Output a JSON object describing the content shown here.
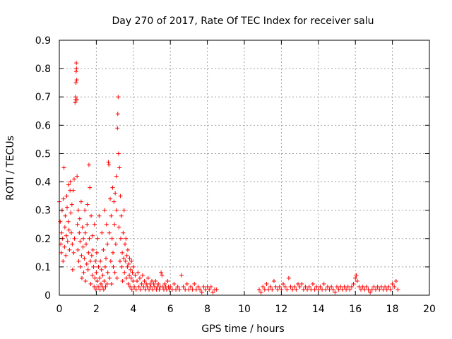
{
  "chart_data": {
    "type": "scatter",
    "title": "Day 270 of 2017, Rate Of TEC Index for receiver salu",
    "xlabel": "GPS time / hours",
    "ylabel": "ROTI / TECUs",
    "xlim": [
      0,
      20
    ],
    "ylim": [
      0,
      0.9
    ],
    "xticks": [
      "0",
      "2",
      "4",
      "6",
      "8",
      "10",
      "12",
      "14",
      "16",
      "18",
      "20"
    ],
    "yticks": [
      "0",
      "0.1",
      "0.2",
      "0.3",
      "0.4",
      "0.5",
      "0.6",
      "0.7",
      "0.8",
      "0.9"
    ],
    "grid": true,
    "marker": "plus",
    "color": "#ff0000",
    "series": [
      {
        "name": "ROTI",
        "points": [
          [
            0.0,
            0.33
          ],
          [
            0.05,
            0.26
          ],
          [
            0.08,
            0.18
          ],
          [
            0.1,
            0.15
          ],
          [
            0.12,
            0.22
          ],
          [
            0.15,
            0.3
          ],
          [
            0.18,
            0.2
          ],
          [
            0.2,
            0.12
          ],
          [
            0.22,
            0.34
          ],
          [
            0.25,
            0.45
          ],
          [
            0.28,
            0.17
          ],
          [
            0.3,
            0.24
          ],
          [
            0.32,
            0.28
          ],
          [
            0.35,
            0.14
          ],
          [
            0.38,
            0.21
          ],
          [
            0.4,
            0.35
          ],
          [
            0.42,
            0.31
          ],
          [
            0.45,
            0.19
          ],
          [
            0.48,
            0.26
          ],
          [
            0.5,
            0.39
          ],
          [
            0.52,
            0.23
          ],
          [
            0.55,
            0.16
          ],
          [
            0.58,
            0.37
          ],
          [
            0.6,
            0.4
          ],
          [
            0.62,
            0.29
          ],
          [
            0.65,
            0.22
          ],
          [
            0.68,
            0.32
          ],
          [
            0.7,
            0.18
          ],
          [
            0.72,
            0.09
          ],
          [
            0.75,
            0.37
          ],
          [
            0.78,
            0.15
          ],
          [
            0.8,
            0.41
          ],
          [
            0.82,
            0.2
          ],
          [
            0.85,
            0.68
          ],
          [
            0.87,
            0.69
          ],
          [
            0.88,
            0.7
          ],
          [
            0.9,
            0.75
          ],
          [
            0.91,
            0.79
          ],
          [
            0.92,
            0.82
          ],
          [
            0.93,
            0.8
          ],
          [
            0.94,
            0.76
          ],
          [
            0.95,
            0.69
          ],
          [
            0.96,
            0.42
          ],
          [
            0.98,
            0.25
          ],
          [
            1.0,
            0.16
          ],
          [
            1.02,
            0.3
          ],
          [
            1.05,
            0.12
          ],
          [
            1.08,
            0.22
          ],
          [
            1.1,
            0.27
          ],
          [
            1.12,
            0.19
          ],
          [
            1.15,
            0.1
          ],
          [
            1.18,
            0.33
          ],
          [
            1.2,
            0.14
          ],
          [
            1.22,
            0.06
          ],
          [
            1.25,
            0.24
          ],
          [
            1.28,
            0.17
          ],
          [
            1.3,
            0.2
          ],
          [
            1.32,
            0.08
          ],
          [
            1.35,
            0.13
          ],
          [
            1.38,
            0.3
          ],
          [
            1.4,
            0.22
          ],
          [
            1.42,
            0.05
          ],
          [
            1.45,
            0.18
          ],
          [
            1.48,
            0.11
          ],
          [
            1.5,
            0.25
          ],
          [
            1.52,
            0.32
          ],
          [
            1.55,
            0.09
          ],
          [
            1.58,
            0.15
          ],
          [
            1.6,
            0.46
          ],
          [
            1.62,
            0.2
          ],
          [
            1.65,
            0.38
          ],
          [
            1.68,
            0.12
          ],
          [
            1.7,
            0.04
          ],
          [
            1.72,
            0.28
          ],
          [
            1.75,
            0.14
          ],
          [
            1.78,
            0.07
          ],
          [
            1.8,
            0.21
          ],
          [
            1.82,
            0.16
          ],
          [
            1.85,
            0.1
          ],
          [
            1.88,
            0.03
          ],
          [
            1.9,
            0.25
          ],
          [
            1.92,
            0.06
          ],
          [
            1.95,
            0.12
          ],
          [
            1.98,
            0.02
          ],
          [
            2.0,
            0.08
          ],
          [
            2.02,
            0.15
          ],
          [
            2.05,
            0.05
          ],
          [
            2.08,
            0.2
          ],
          [
            2.1,
            0.03
          ],
          [
            2.12,
            0.1
          ],
          [
            2.15,
            0.28
          ],
          [
            2.18,
            0.06
          ],
          [
            2.2,
            0.02
          ],
          [
            2.22,
            0.12
          ],
          [
            2.25,
            0.04
          ],
          [
            2.28,
            0.09
          ],
          [
            2.3,
            0.22
          ],
          [
            2.32,
            0.03
          ],
          [
            2.35,
            0.07
          ],
          [
            2.38,
            0.16
          ],
          [
            2.4,
            0.02
          ],
          [
            2.42,
            0.05
          ],
          [
            2.45,
            0.3
          ],
          [
            2.48,
            0.1
          ],
          [
            2.5,
            0.03
          ],
          [
            2.52,
            0.13
          ],
          [
            2.55,
            0.25
          ],
          [
            2.58,
            0.04
          ],
          [
            2.6,
            0.18
          ],
          [
            2.62,
            0.08
          ],
          [
            2.65,
            0.47
          ],
          [
            2.68,
            0.46
          ],
          [
            2.7,
            0.22
          ],
          [
            2.72,
            0.06
          ],
          [
            2.75,
            0.34
          ],
          [
            2.78,
            0.12
          ],
          [
            2.8,
            0.28
          ],
          [
            2.82,
            0.04
          ],
          [
            2.85,
            0.2
          ],
          [
            2.88,
            0.38
          ],
          [
            2.9,
            0.15
          ],
          [
            2.92,
            0.1
          ],
          [
            2.95,
            0.33
          ],
          [
            2.98,
            0.25
          ],
          [
            3.0,
            0.08
          ],
          [
            3.02,
            0.36
          ],
          [
            3.05,
            0.18
          ],
          [
            3.08,
            0.42
          ],
          [
            3.1,
            0.3
          ],
          [
            3.12,
            0.06
          ],
          [
            3.14,
            0.59
          ],
          [
            3.16,
            0.64
          ],
          [
            3.18,
            0.7
          ],
          [
            3.2,
            0.5
          ],
          [
            3.22,
            0.24
          ],
          [
            3.25,
            0.45
          ],
          [
            3.28,
            0.12
          ],
          [
            3.3,
            0.35
          ],
          [
            3.32,
            0.2
          ],
          [
            3.35,
            0.28
          ],
          [
            3.38,
            0.1
          ],
          [
            3.4,
            0.15
          ],
          [
            3.42,
            0.05
          ],
          [
            3.45,
            0.22
          ],
          [
            3.48,
            0.13
          ],
          [
            3.5,
            0.3
          ],
          [
            3.52,
            0.08
          ],
          [
            3.55,
            0.18
          ],
          [
            3.58,
            0.12
          ],
          [
            3.6,
            0.2
          ],
          [
            3.62,
            0.06
          ],
          [
            3.65,
            0.14
          ],
          [
            3.68,
            0.1
          ],
          [
            3.7,
            0.16
          ],
          [
            3.72,
            0.04
          ],
          [
            3.75,
            0.11
          ],
          [
            3.78,
            0.07
          ],
          [
            3.8,
            0.13
          ],
          [
            3.82,
            0.03
          ],
          [
            3.85,
            0.09
          ],
          [
            3.88,
            0.06
          ],
          [
            3.9,
            0.12
          ],
          [
            3.92,
            0.02
          ],
          [
            3.95,
            0.08
          ],
          [
            3.98,
            0.05
          ],
          [
            4.0,
            0.1
          ],
          [
            4.05,
            0.03
          ],
          [
            4.1,
            0.07
          ],
          [
            4.15,
            0.02
          ],
          [
            4.2,
            0.05
          ],
          [
            4.25,
            0.08
          ],
          [
            4.3,
            0.03
          ],
          [
            4.35,
            0.06
          ],
          [
            4.4,
            0.02
          ],
          [
            4.45,
            0.04
          ],
          [
            4.5,
            0.07
          ],
          [
            4.55,
            0.03
          ],
          [
            4.6,
            0.05
          ],
          [
            4.65,
            0.02
          ],
          [
            4.7,
            0.04
          ],
          [
            4.75,
            0.03
          ],
          [
            4.8,
            0.06
          ],
          [
            4.85,
            0.02
          ],
          [
            4.9,
            0.04
          ],
          [
            4.95,
            0.03
          ],
          [
            5.0,
            0.05
          ],
          [
            5.05,
            0.02
          ],
          [
            5.1,
            0.04
          ],
          [
            5.15,
            0.03
          ],
          [
            5.2,
            0.05
          ],
          [
            5.25,
            0.02
          ],
          [
            5.3,
            0.03
          ],
          [
            5.35,
            0.04
          ],
          [
            5.4,
            0.02
          ],
          [
            5.45,
            0.03
          ],
          [
            5.5,
            0.08
          ],
          [
            5.55,
            0.07
          ],
          [
            5.6,
            0.03
          ],
          [
            5.65,
            0.02
          ],
          [
            5.7,
            0.04
          ],
          [
            5.75,
            0.03
          ],
          [
            5.8,
            0.02
          ],
          [
            5.85,
            0.05
          ],
          [
            5.9,
            0.03
          ],
          [
            5.95,
            0.02
          ],
          [
            6.0,
            0.03
          ],
          [
            6.1,
            0.02
          ],
          [
            6.2,
            0.04
          ],
          [
            6.3,
            0.02
          ],
          [
            6.4,
            0.03
          ],
          [
            6.5,
            0.02
          ],
          [
            6.6,
            0.07
          ],
          [
            6.7,
            0.03
          ],
          [
            6.8,
            0.02
          ],
          [
            6.9,
            0.04
          ],
          [
            7.0,
            0.02
          ],
          [
            7.1,
            0.03
          ],
          [
            7.2,
            0.02
          ],
          [
            7.3,
            0.04
          ],
          [
            7.4,
            0.02
          ],
          [
            7.5,
            0.03
          ],
          [
            7.6,
            0.02
          ],
          [
            7.7,
            0.01
          ],
          [
            7.8,
            0.03
          ],
          [
            7.9,
            0.02
          ],
          [
            8.0,
            0.03
          ],
          [
            8.1,
            0.02
          ],
          [
            8.2,
            0.03
          ],
          [
            8.3,
            0.01
          ],
          [
            8.4,
            0.02
          ],
          [
            8.5,
            0.02
          ],
          [
            10.8,
            0.02
          ],
          [
            10.9,
            0.01
          ],
          [
            11.0,
            0.03
          ],
          [
            11.1,
            0.02
          ],
          [
            11.2,
            0.04
          ],
          [
            11.3,
            0.02
          ],
          [
            11.4,
            0.03
          ],
          [
            11.5,
            0.02
          ],
          [
            11.6,
            0.05
          ],
          [
            11.7,
            0.03
          ],
          [
            11.8,
            0.02
          ],
          [
            11.9,
            0.03
          ],
          [
            12.0,
            0.02
          ],
          [
            12.1,
            0.04
          ],
          [
            12.2,
            0.03
          ],
          [
            12.3,
            0.02
          ],
          [
            12.4,
            0.06
          ],
          [
            12.5,
            0.03
          ],
          [
            12.6,
            0.02
          ],
          [
            12.7,
            0.03
          ],
          [
            12.8,
            0.02
          ],
          [
            12.9,
            0.04
          ],
          [
            13.0,
            0.03
          ],
          [
            13.1,
            0.04
          ],
          [
            13.2,
            0.02
          ],
          [
            13.3,
            0.03
          ],
          [
            13.4,
            0.02
          ],
          [
            13.5,
            0.03
          ],
          [
            13.6,
            0.02
          ],
          [
            13.7,
            0.04
          ],
          [
            13.8,
            0.02
          ],
          [
            13.9,
            0.03
          ],
          [
            14.0,
            0.02
          ],
          [
            14.1,
            0.03
          ],
          [
            14.2,
            0.02
          ],
          [
            14.3,
            0.04
          ],
          [
            14.4,
            0.02
          ],
          [
            14.5,
            0.03
          ],
          [
            14.6,
            0.02
          ],
          [
            14.7,
            0.03
          ],
          [
            14.8,
            0.02
          ],
          [
            14.9,
            0.01
          ],
          [
            15.0,
            0.03
          ],
          [
            15.1,
            0.02
          ],
          [
            15.2,
            0.03
          ],
          [
            15.3,
            0.02
          ],
          [
            15.4,
            0.03
          ],
          [
            15.5,
            0.02
          ],
          [
            15.6,
            0.03
          ],
          [
            15.7,
            0.02
          ],
          [
            15.8,
            0.03
          ],
          [
            15.9,
            0.04
          ],
          [
            16.0,
            0.06
          ],
          [
            16.05,
            0.07
          ],
          [
            16.1,
            0.05
          ],
          [
            16.2,
            0.03
          ],
          [
            16.3,
            0.02
          ],
          [
            16.4,
            0.03
          ],
          [
            16.5,
            0.02
          ],
          [
            16.6,
            0.03
          ],
          [
            16.7,
            0.02
          ],
          [
            16.8,
            0.01
          ],
          [
            16.9,
            0.02
          ],
          [
            17.0,
            0.03
          ],
          [
            17.1,
            0.02
          ],
          [
            17.2,
            0.03
          ],
          [
            17.3,
            0.02
          ],
          [
            17.4,
            0.03
          ],
          [
            17.5,
            0.02
          ],
          [
            17.6,
            0.03
          ],
          [
            17.7,
            0.02
          ],
          [
            17.8,
            0.03
          ],
          [
            17.9,
            0.02
          ],
          [
            18.0,
            0.04
          ],
          [
            18.1,
            0.03
          ],
          [
            18.2,
            0.05
          ],
          [
            18.3,
            0.02
          ]
        ]
      }
    ]
  }
}
